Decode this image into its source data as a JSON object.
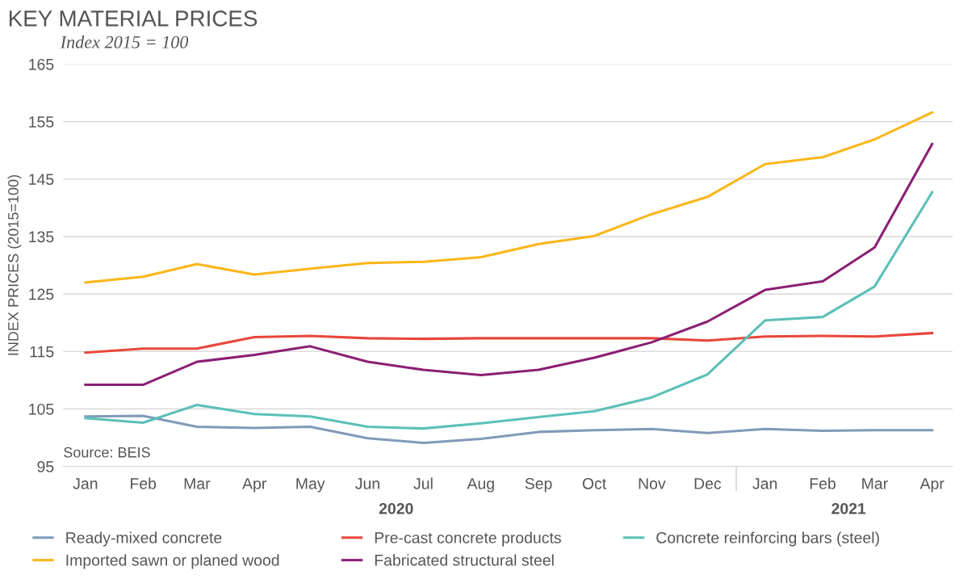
{
  "chart_data": {
    "type": "line",
    "title": "KEY MATERIAL PRICES",
    "subtitle": "Index 2015 = 100",
    "ylabel": "INDEX PRICES (2015=100)",
    "annotations": [
      "Source: BEIS",
      "2020",
      "2021"
    ],
    "x": [
      "2020-01",
      "2020-02",
      "2020-03",
      "2020-04",
      "2020-05",
      "2020-06",
      "2020-07",
      "2020-08",
      "2020-09",
      "2020-10",
      "2020-11",
      "2020-12",
      "2021-01",
      "2021-02",
      "2021-03",
      "2021-04"
    ],
    "xlim": [
      "2019-12-20",
      "2021-04-12"
    ],
    "xticks": [
      {
        "value": "2020-01",
        "label": "Jan"
      },
      {
        "value": "2020-02",
        "label": "Feb"
      },
      {
        "value": "2020-03",
        "label": "Mar"
      },
      {
        "value": "2020-04",
        "label": "Apr"
      },
      {
        "value": "2020-05",
        "label": "May"
      },
      {
        "value": "2020-06",
        "label": "Jun"
      },
      {
        "value": "2020-07",
        "label": "Jul"
      },
      {
        "value": "2020-08",
        "label": "Aug"
      },
      {
        "value": "2020-09",
        "label": "Sep"
      },
      {
        "value": "2020-10",
        "label": "Oct"
      },
      {
        "value": "2020-11",
        "label": "Nov"
      },
      {
        "value": "2020-12",
        "label": "Dec"
      },
      {
        "value": "2021-01",
        "label": "Jan"
      },
      {
        "value": "2021-02",
        "label": "Feb"
      },
      {
        "value": "2021-03",
        "label": "Mar"
      },
      {
        "value": "2021-04",
        "label": "Apr"
      }
    ],
    "ylim": [
      95,
      165
    ],
    "yticks": [
      95,
      105,
      115,
      125,
      135,
      145,
      155,
      165
    ],
    "grid": "y",
    "legend": "bottom",
    "marker": "none",
    "line_style": "solid",
    "series": [
      {
        "name": "Ready-mixed concrete",
        "color": "#7f9bb8",
        "values": [
          103.7,
          103.8,
          101.9,
          101.7,
          101.9,
          99.9,
          99.1,
          99.8,
          101.0,
          101.3,
          101.5,
          100.8,
          101.5,
          101.2,
          101.3,
          101.3
        ]
      },
      {
        "name": "Pre-cast concrete products",
        "color": "#e8463c",
        "values": [
          114.8,
          115.5,
          115.5,
          117.5,
          117.7,
          117.3,
          117.2,
          117.3,
          117.3,
          117.3,
          117.3,
          116.9,
          117.6,
          117.7,
          117.6,
          118.2
        ]
      },
      {
        "name": "Concrete reinforcing bars (steel)",
        "color": "#5bc0b8",
        "values": [
          103.4,
          102.6,
          105.7,
          104.1,
          103.7,
          101.9,
          101.6,
          102.5,
          103.6,
          104.6,
          107.0,
          111.0,
          120.4,
          121.0,
          126.3,
          142.7
        ]
      },
      {
        "name": "Imported sawn or planed wood",
        "color": "#fbb61a",
        "values": [
          127.0,
          128.0,
          130.2,
          128.4,
          129.4,
          130.4,
          130.6,
          131.4,
          133.7,
          135.1,
          138.9,
          141.9,
          147.6,
          148.8,
          151.9,
          156.6
        ]
      },
      {
        "name": "Fabricated structural steel",
        "color": "#8b1f73",
        "values": [
          109.2,
          109.2,
          113.2,
          114.4,
          115.9,
          113.2,
          111.8,
          110.9,
          111.8,
          113.9,
          116.6,
          120.2,
          125.7,
          127.2,
          133.1,
          151.1
        ]
      }
    ]
  }
}
